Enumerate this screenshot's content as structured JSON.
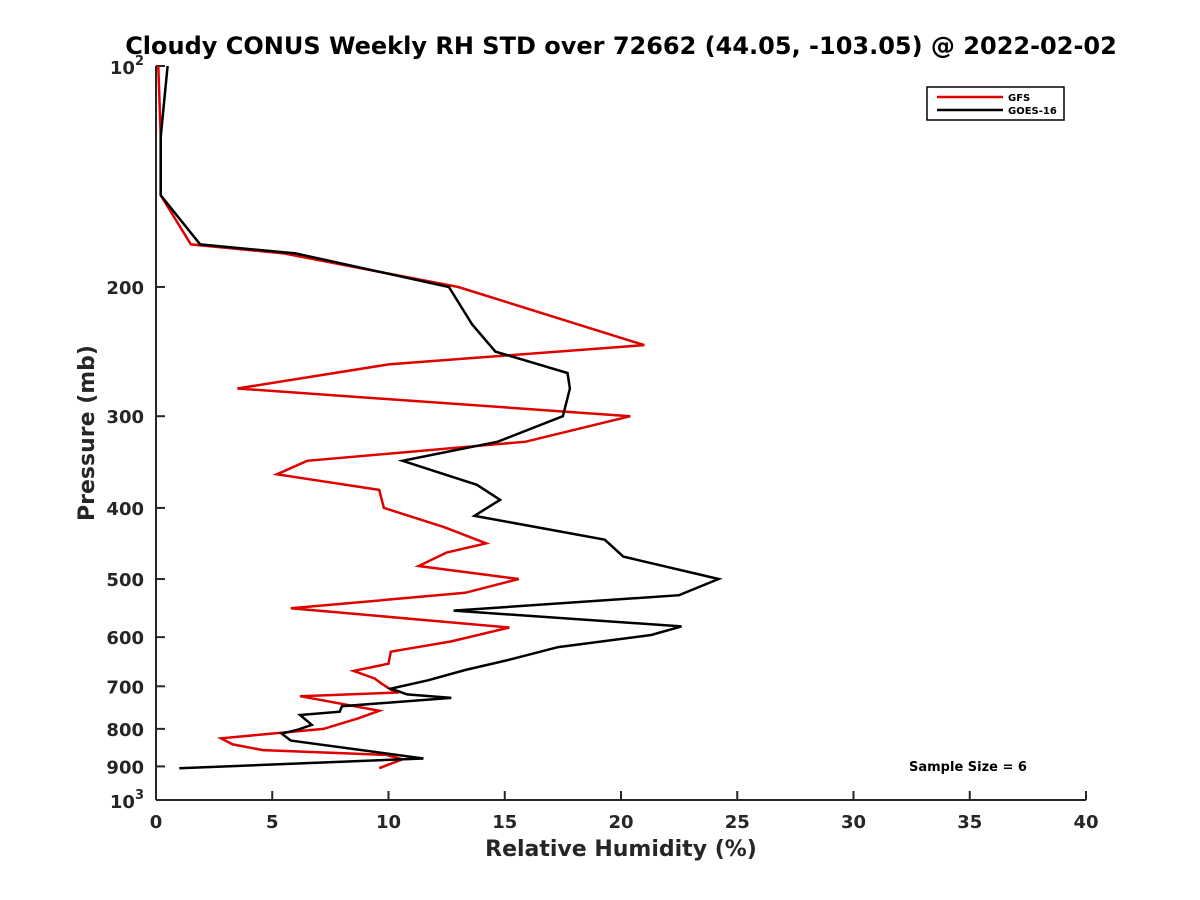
{
  "chart_data": {
    "type": "line",
    "title": "Cloudy CONUS Weekly RH STD over 72662 (44.05, -103.05) @ 2022-02-02",
    "xlabel": "Relative Humidity (%)",
    "ylabel": "Pressure (mb)",
    "xlim": [
      0,
      40
    ],
    "ylim": [
      100,
      1000
    ],
    "yscale": "log",
    "yreversed": true,
    "grid": false,
    "legend_position": "top-right",
    "x_ticks": [
      "0",
      "5",
      "10",
      "15",
      "20",
      "25",
      "30",
      "35",
      "40"
    ],
    "y_ticks": [
      {
        "value": 100,
        "base": "10",
        "exp": "2"
      },
      {
        "value": 200,
        "label": "200"
      },
      {
        "value": 300,
        "label": "300"
      },
      {
        "value": 400,
        "label": "400"
      },
      {
        "value": 500,
        "label": "500"
      },
      {
        "value": 600,
        "label": "600"
      },
      {
        "value": 700,
        "label": "700"
      },
      {
        "value": 800,
        "label": "800"
      },
      {
        "value": 900,
        "label": "900"
      },
      {
        "value": 1000,
        "base": "10",
        "exp": "3"
      }
    ],
    "series": [
      {
        "name": "GFS",
        "color": "#e00000",
        "points": [
          [
            0.1,
            100
          ],
          [
            0.2,
            125
          ],
          [
            0.2,
            150
          ],
          [
            1.5,
            175
          ],
          [
            5.5,
            180
          ],
          [
            13.0,
            200
          ],
          [
            21.0,
            240
          ],
          [
            10.0,
            255
          ],
          [
            3.5,
            275
          ],
          [
            20.4,
            300
          ],
          [
            15.9,
            325
          ],
          [
            6.5,
            345
          ],
          [
            5.2,
            360
          ],
          [
            9.6,
            378
          ],
          [
            9.8,
            400
          ],
          [
            12.4,
            425
          ],
          [
            14.2,
            447
          ],
          [
            12.5,
            460
          ],
          [
            11.3,
            480
          ],
          [
            15.6,
            500
          ],
          [
            13.3,
            522
          ],
          [
            5.8,
            548
          ],
          [
            11.4,
            568
          ],
          [
            15.2,
            582
          ],
          [
            12.7,
            608
          ],
          [
            10.1,
            628
          ],
          [
            10.0,
            652
          ],
          [
            8.5,
            667
          ],
          [
            9.4,
            683
          ],
          [
            9.7,
            694
          ],
          [
            10.3,
            714
          ],
          [
            6.2,
            722
          ],
          [
            9.6,
            756
          ],
          [
            8.7,
            774
          ],
          [
            7.2,
            800
          ],
          [
            2.8,
            824
          ],
          [
            3.3,
            840
          ],
          [
            4.6,
            855
          ],
          [
            9.9,
            868
          ],
          [
            10.6,
            880
          ],
          [
            10.0,
            895
          ],
          [
            9.6,
            905
          ]
        ]
      },
      {
        "name": "GOES-16",
        "color": "#000000",
        "points": [
          [
            0.5,
            100
          ],
          [
            0.2,
            125
          ],
          [
            0.2,
            150
          ],
          [
            1.9,
            175
          ],
          [
            6.0,
            180
          ],
          [
            12.6,
            200
          ],
          [
            13.6,
            225
          ],
          [
            14.6,
            245
          ],
          [
            17.7,
            262
          ],
          [
            17.8,
            275
          ],
          [
            17.5,
            300
          ],
          [
            14.7,
            325
          ],
          [
            10.6,
            345
          ],
          [
            13.8,
            372
          ],
          [
            14.8,
            390
          ],
          [
            13.7,
            410
          ],
          [
            19.3,
            442
          ],
          [
            20.1,
            466
          ],
          [
            24.2,
            500
          ],
          [
            22.5,
            526
          ],
          [
            12.8,
            552
          ],
          [
            22.6,
            580
          ],
          [
            21.3,
            596
          ],
          [
            17.3,
            619
          ],
          [
            15.2,
            644
          ],
          [
            13.3,
            665
          ],
          [
            11.7,
            687
          ],
          [
            10.1,
            705
          ],
          [
            10.8,
            718
          ],
          [
            12.7,
            726
          ],
          [
            8.0,
            745
          ],
          [
            7.9,
            758
          ],
          [
            6.2,
            766
          ],
          [
            6.7,
            790
          ],
          [
            6.1,
            802
          ],
          [
            5.4,
            812
          ],
          [
            5.8,
            830
          ],
          [
            11.5,
            878
          ],
          [
            1.0,
            905
          ]
        ]
      }
    ],
    "annotations": {
      "sample_size": "Sample Size = 6"
    }
  }
}
